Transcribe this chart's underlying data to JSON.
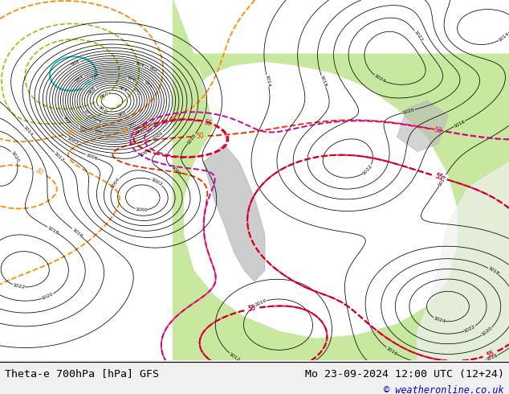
{
  "title_left": "Theta-e 700hPa [hPa] GFS",
  "title_right": "Mo 23-09-2024 12:00 UTC (12+24)",
  "copyright": "© weatheronline.co.uk",
  "bg_map_color": "#f0f0f0",
  "bottom_bar_color": "#f0f0f0",
  "title_color": "#000000",
  "copyright_color": "#0000cc",
  "fig_width": 6.34,
  "fig_height": 4.9,
  "dpi": 100
}
